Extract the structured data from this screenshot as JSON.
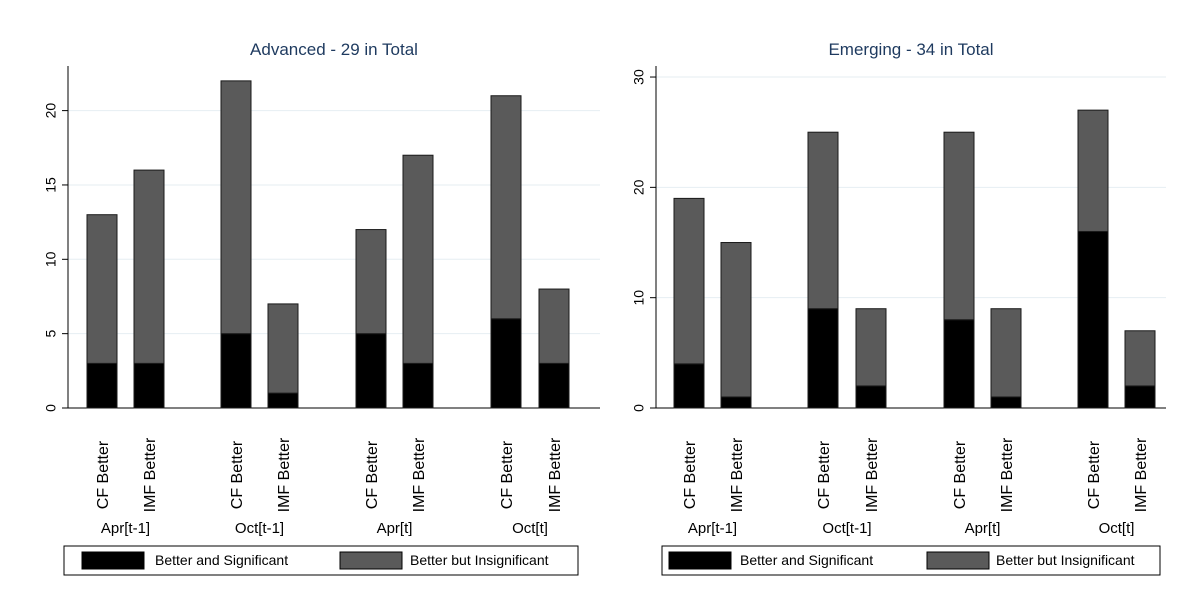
{
  "chart_data": [
    {
      "type": "bar",
      "stacked": true,
      "title": "Advanced - 29 in Total",
      "xlabel": "",
      "ylabel": "",
      "ylim": [
        0,
        23
      ],
      "yticks": [
        0,
        5,
        10,
        15,
        20
      ],
      "grid": true,
      "categories": [
        "CF Better",
        "IMF Better",
        "CF Better",
        "IMF Better",
        "CF Better",
        "IMF Better",
        "CF Better",
        "IMF Better"
      ],
      "groups": [
        "Apr[t-1]",
        "Oct[t-1]",
        "Apr[t]",
        "Oct[t]"
      ],
      "series": [
        {
          "name": "Better and Significant",
          "color": "#000000",
          "values": [
            3,
            3,
            5,
            1,
            5,
            3,
            6,
            3
          ]
        },
        {
          "name": "Better but Insignificant",
          "color": "#5a5a5a",
          "values": [
            10,
            13,
            17,
            6,
            7,
            14,
            15,
            5
          ]
        }
      ],
      "legend_position": "bottom"
    },
    {
      "type": "bar",
      "stacked": true,
      "title": "Emerging - 34 in Total",
      "xlabel": "",
      "ylabel": "",
      "ylim": [
        0,
        31
      ],
      "yticks": [
        0,
        10,
        20,
        30
      ],
      "grid": true,
      "categories": [
        "CF Better",
        "IMF Better",
        "CF Better",
        "IMF Better",
        "CF Better",
        "IMF Better",
        "CF Better",
        "IMF Better"
      ],
      "groups": [
        "Apr[t-1]",
        "Oct[t-1]",
        "Apr[t]",
        "Oct[t]"
      ],
      "series": [
        {
          "name": "Better and Significant",
          "color": "#000000",
          "values": [
            4,
            1,
            9,
            2,
            8,
            1,
            16,
            2
          ]
        },
        {
          "name": "Better but Insignificant",
          "color": "#5a5a5a",
          "values": [
            15,
            14,
            16,
            7,
            17,
            8,
            11,
            5
          ]
        }
      ],
      "legend_position": "bottom"
    }
  ]
}
